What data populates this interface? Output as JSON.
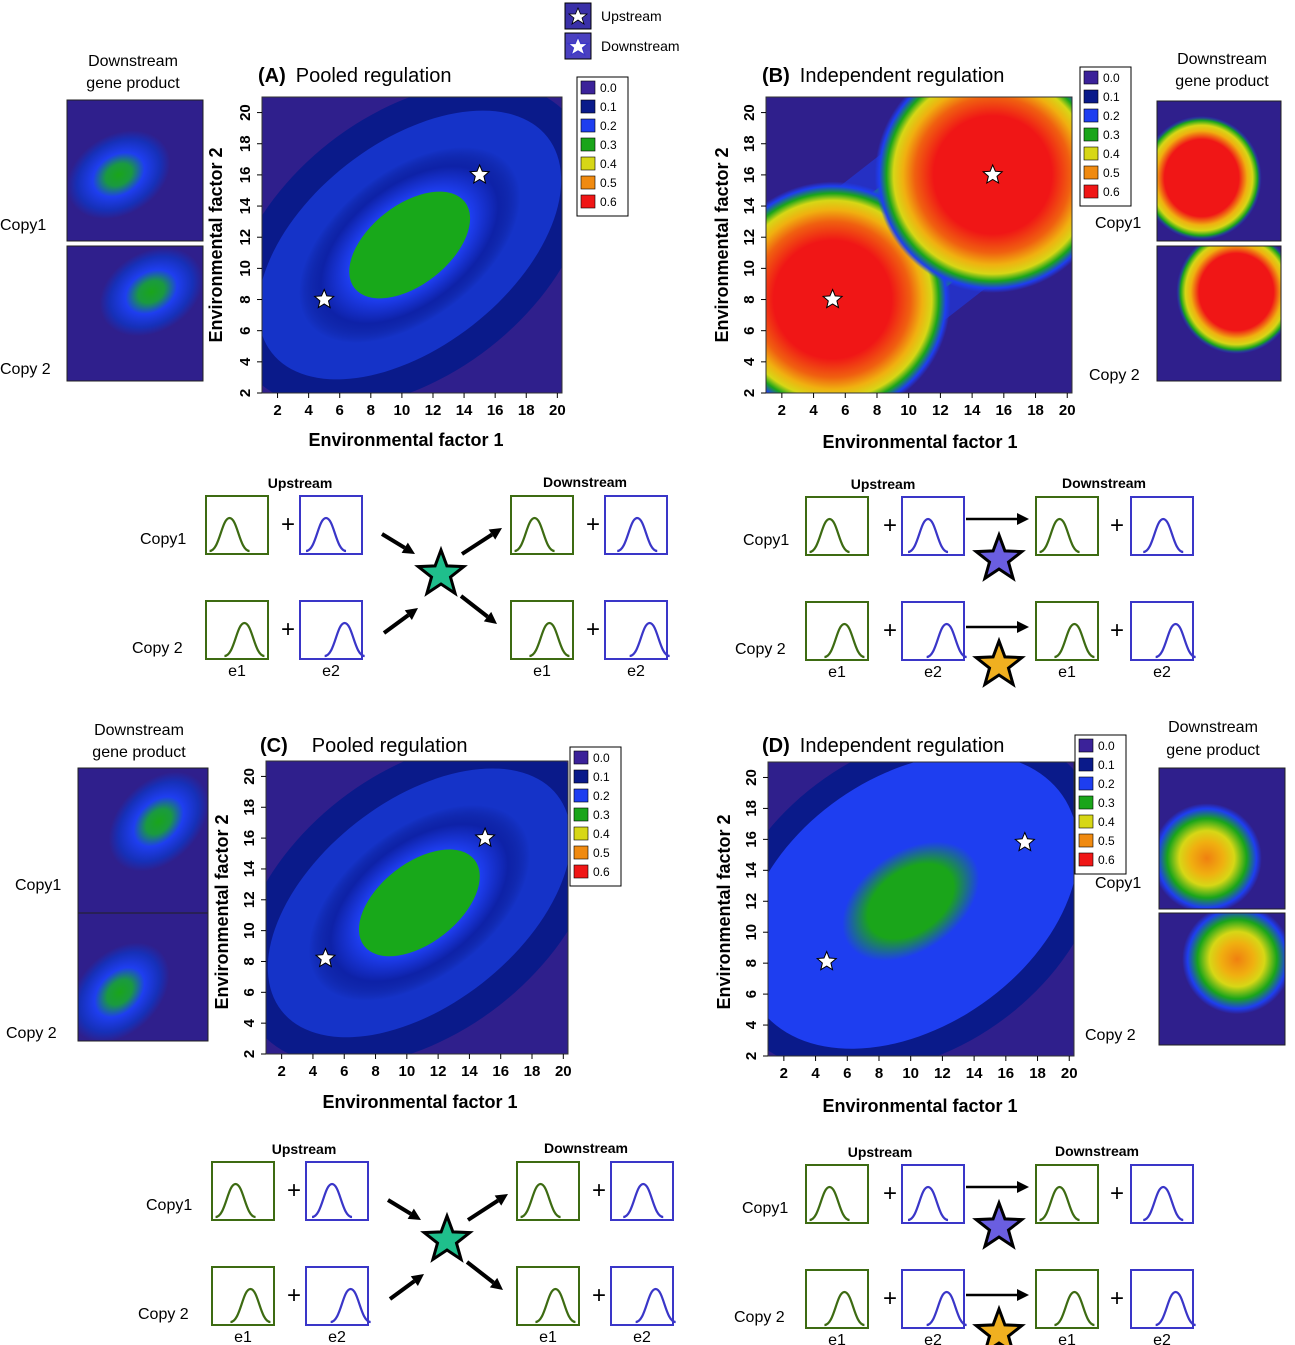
{
  "legend_top": {
    "upstream": "Upstream",
    "downstream": "Downstream"
  },
  "colorbar_levels": [
    "0.0",
    "0.1",
    "0.2",
    "0.3",
    "0.4",
    "0.5",
    "0.6"
  ],
  "colors": {
    "background": "#2f1f8c",
    "levels": [
      "#3b2299",
      "#0a1a8a",
      "#1e3ef0",
      "#1aa51a",
      "#d7d716",
      "#f08a10",
      "#f01616"
    ],
    "env1_curve": "#3d6b12",
    "env2_curve": "#3a36c8",
    "pooled_star": "#1fbf8c",
    "star_copy1": "#6a5ee0",
    "star_copy2": "#f0b020"
  },
  "copy_labels": {
    "copy1": "Copy1",
    "copy2": "Copy 2"
  },
  "downstream_gene_product": [
    "Downstream",
    "gene product"
  ],
  "diagram_labels": {
    "upstream": "Upstream",
    "downstream": "Downstream",
    "plus": "+",
    "e1": "e1",
    "e2": "e2"
  },
  "panels": [
    {
      "id": "A",
      "letter": "(A)",
      "title": "Pooled regulation"
    },
    {
      "id": "B",
      "letter": "(B)",
      "title": "Independent regulation"
    },
    {
      "id": "C",
      "letter": "(C)",
      "title": "Pooled regulation"
    },
    {
      "id": "D",
      "letter": "(D)",
      "title": "Independent regulation"
    }
  ],
  "chart_data": [
    {
      "type": "heatmap",
      "panel": "A",
      "title": "(A) Pooled regulation",
      "xlabel": "Environmental factor 1",
      "ylabel": "Environmental factor 2",
      "xticks": [
        2,
        4,
        6,
        8,
        10,
        12,
        14,
        16,
        18,
        20
      ],
      "yticks": [
        2,
        4,
        6,
        8,
        10,
        12,
        14,
        16,
        18,
        20
      ],
      "xlim": [
        1,
        20.3
      ],
      "ylim": [
        2,
        21
      ],
      "levels": [
        0.0,
        0.1,
        0.2,
        0.3,
        0.4,
        0.5,
        0.6
      ],
      "stars": [
        {
          "x": 5,
          "y": 8
        },
        {
          "x": 15,
          "y": 16
        }
      ],
      "peaks": [
        {
          "x": 10.5,
          "y": 11.5,
          "value": 0.3
        }
      ]
    },
    {
      "type": "heatmap",
      "panel": "B",
      "title": "(B) Independent regulation",
      "xlabel": "Environmental factor 1",
      "ylabel": "Environmental factor 2",
      "xticks": [
        2,
        4,
        6,
        8,
        10,
        12,
        14,
        16,
        18,
        20
      ],
      "yticks": [
        2,
        4,
        6,
        8,
        10,
        12,
        14,
        16,
        18,
        20
      ],
      "xlim": [
        1,
        20.3
      ],
      "ylim": [
        2,
        21
      ],
      "levels": [
        0.0,
        0.1,
        0.2,
        0.3,
        0.4,
        0.5,
        0.6
      ],
      "stars": [
        {
          "x": 5.2,
          "y": 8
        },
        {
          "x": 15.3,
          "y": 16
        }
      ],
      "peaks": [
        {
          "x": 5.2,
          "y": 8,
          "value": 0.6
        },
        {
          "x": 15.3,
          "y": 16,
          "value": 0.6
        }
      ]
    },
    {
      "type": "heatmap",
      "panel": "C",
      "title": "(C) Pooled regulation",
      "xlabel": "Environmental factor 1",
      "ylabel": "Environmental factor 2",
      "xticks": [
        2,
        4,
        6,
        8,
        10,
        12,
        14,
        16,
        18,
        20
      ],
      "yticks": [
        2,
        4,
        6,
        8,
        10,
        12,
        14,
        16,
        18,
        20
      ],
      "xlim": [
        1,
        20.3
      ],
      "ylim": [
        2,
        21
      ],
      "levels": [
        0.0,
        0.1,
        0.2,
        0.3,
        0.4,
        0.5,
        0.6
      ],
      "stars": [
        {
          "x": 4.8,
          "y": 8.2
        },
        {
          "x": 15,
          "y": 16
        }
      ],
      "peaks": [
        {
          "x": 10.8,
          "y": 11.8,
          "value": 0.3
        }
      ]
    },
    {
      "type": "heatmap",
      "panel": "D",
      "title": "(D) Independent regulation",
      "xlabel": "Environmental factor 1",
      "ylabel": "Environmental factor 2",
      "xticks": [
        2,
        4,
        6,
        8,
        10,
        12,
        14,
        16,
        18,
        20
      ],
      "yticks": [
        2,
        4,
        6,
        8,
        10,
        12,
        14,
        16,
        18,
        20
      ],
      "xlim": [
        1,
        20.3
      ],
      "ylim": [
        2,
        21
      ],
      "levels": [
        0.0,
        0.1,
        0.2,
        0.3,
        0.4,
        0.5,
        0.6
      ],
      "stars": [
        {
          "x": 4.7,
          "y": 8.1
        },
        {
          "x": 17.2,
          "y": 15.8
        }
      ],
      "peaks": [
        {
          "x": 10,
          "y": 12,
          "value": 0.3
        }
      ]
    }
  ]
}
